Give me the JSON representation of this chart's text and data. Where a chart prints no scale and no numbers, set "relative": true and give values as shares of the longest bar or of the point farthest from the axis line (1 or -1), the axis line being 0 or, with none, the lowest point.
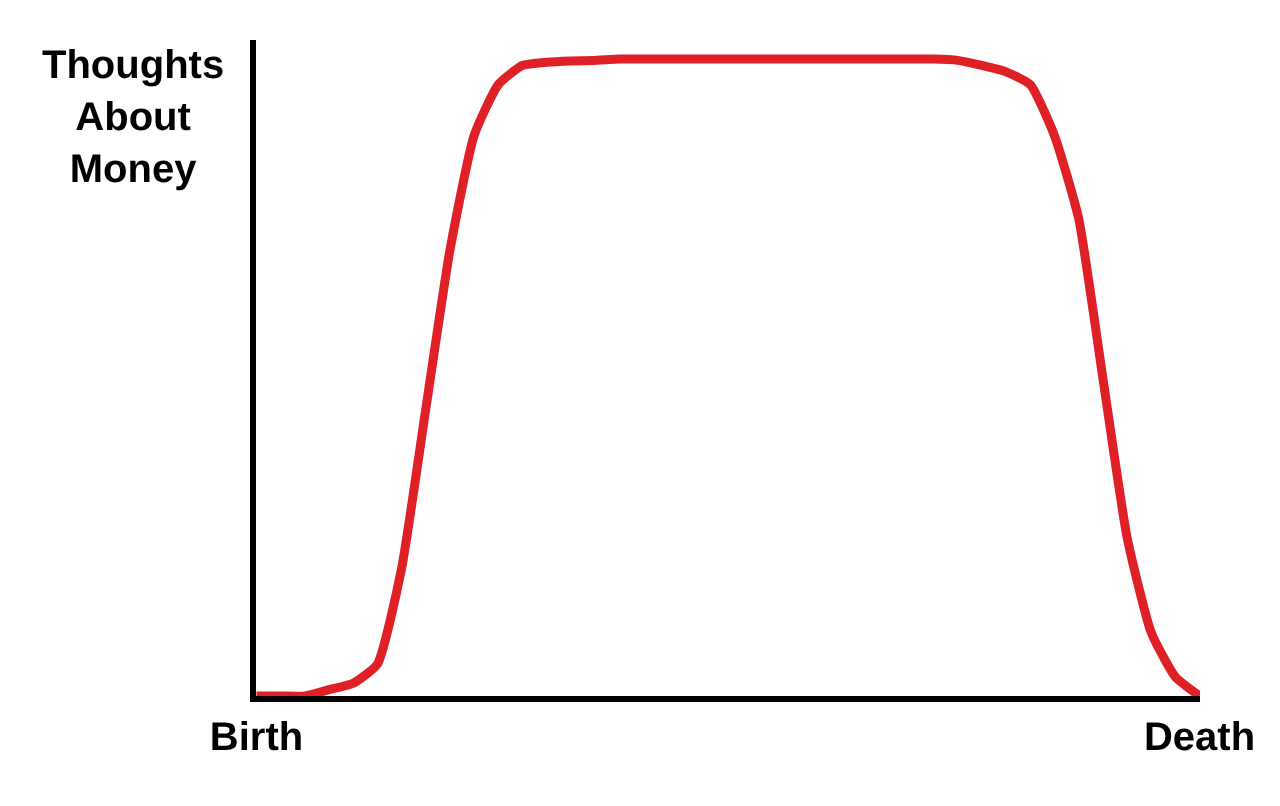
{
  "chart_data": {
    "type": "line",
    "relative": true,
    "ylabel": "Thoughts About Money",
    "categories": [
      "Birth",
      null,
      null,
      null,
      null,
      null,
      null,
      null,
      null,
      null,
      null,
      null,
      null,
      null,
      null,
      null,
      null,
      null,
      null,
      null,
      null,
      null,
      null,
      null,
      null,
      null,
      null,
      null,
      null,
      null,
      null,
      null,
      null,
      null,
      null,
      null,
      null,
      null,
      null,
      "Death"
    ],
    "series": [
      {
        "color": "#e02027",
        "values": [
          0,
          0,
          0,
          0.01,
          0.02,
          0.05,
          0.2,
          0.45,
          0.7,
          0.88,
          0.96,
          0.99,
          0.995,
          0.997,
          0.998,
          1,
          1,
          1,
          1,
          1,
          1,
          1,
          1,
          1,
          1,
          1,
          1,
          1,
          1,
          0.998,
          0.99,
          0.98,
          0.96,
          0.88,
          0.75,
          0.5,
          0.25,
          0.1,
          0.03,
          0
        ]
      }
    ],
    "marker": "none",
    "line_style": "solid"
  }
}
